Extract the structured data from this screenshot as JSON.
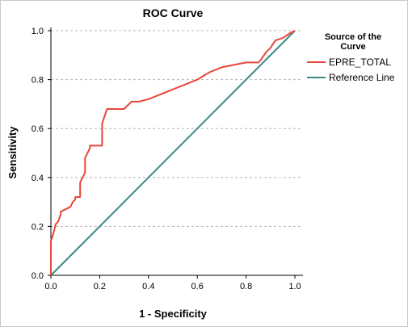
{
  "chart_data": {
    "type": "line",
    "title": "ROC Curve",
    "xlabel": "1 - Specificity",
    "ylabel": "Sensitivity",
    "xlim": [
      0,
      1
    ],
    "ylim": [
      0,
      1
    ],
    "x_ticks": [
      "0.0",
      "0.2",
      "0.4",
      "0.6",
      "0.8",
      "1.0"
    ],
    "y_ticks": [
      "0.0",
      "0.2",
      "0.4",
      "0.6",
      "0.8",
      "1.0"
    ],
    "grid": "horizontal dashed",
    "legend": {
      "title": "Source of the Curve",
      "title_lines": [
        "Source of the",
        "Curve"
      ],
      "placement": "right"
    },
    "series": [
      {
        "name": "EPRE_TOTAL",
        "color": "#e8463a",
        "x": [
          0.0,
          0.0,
          0.01,
          0.02,
          0.03,
          0.04,
          0.04,
          0.06,
          0.08,
          0.09,
          0.1,
          0.1,
          0.12,
          0.12,
          0.13,
          0.14,
          0.14,
          0.15,
          0.16,
          0.16,
          0.18,
          0.2,
          0.21,
          0.21,
          0.22,
          0.23,
          0.24,
          0.26,
          0.29,
          0.3,
          0.33,
          0.36,
          0.4,
          0.45,
          0.5,
          0.55,
          0.6,
          0.65,
          0.7,
          0.75,
          0.8,
          0.85,
          0.86,
          0.88,
          0.9,
          0.92,
          0.95,
          0.98,
          1.0
        ],
        "y": [
          0.0,
          0.14,
          0.17,
          0.21,
          0.22,
          0.25,
          0.26,
          0.27,
          0.28,
          0.3,
          0.31,
          0.32,
          0.32,
          0.38,
          0.4,
          0.42,
          0.48,
          0.5,
          0.52,
          0.53,
          0.53,
          0.53,
          0.53,
          0.62,
          0.65,
          0.68,
          0.68,
          0.68,
          0.68,
          0.68,
          0.71,
          0.71,
          0.72,
          0.74,
          0.76,
          0.78,
          0.8,
          0.83,
          0.85,
          0.86,
          0.87,
          0.87,
          0.88,
          0.91,
          0.93,
          0.96,
          0.97,
          0.99,
          1.0
        ]
      },
      {
        "name": "Reference Line",
        "color": "#3a8a88",
        "x": [
          0,
          1
        ],
        "y": [
          0,
          1
        ]
      }
    ]
  }
}
